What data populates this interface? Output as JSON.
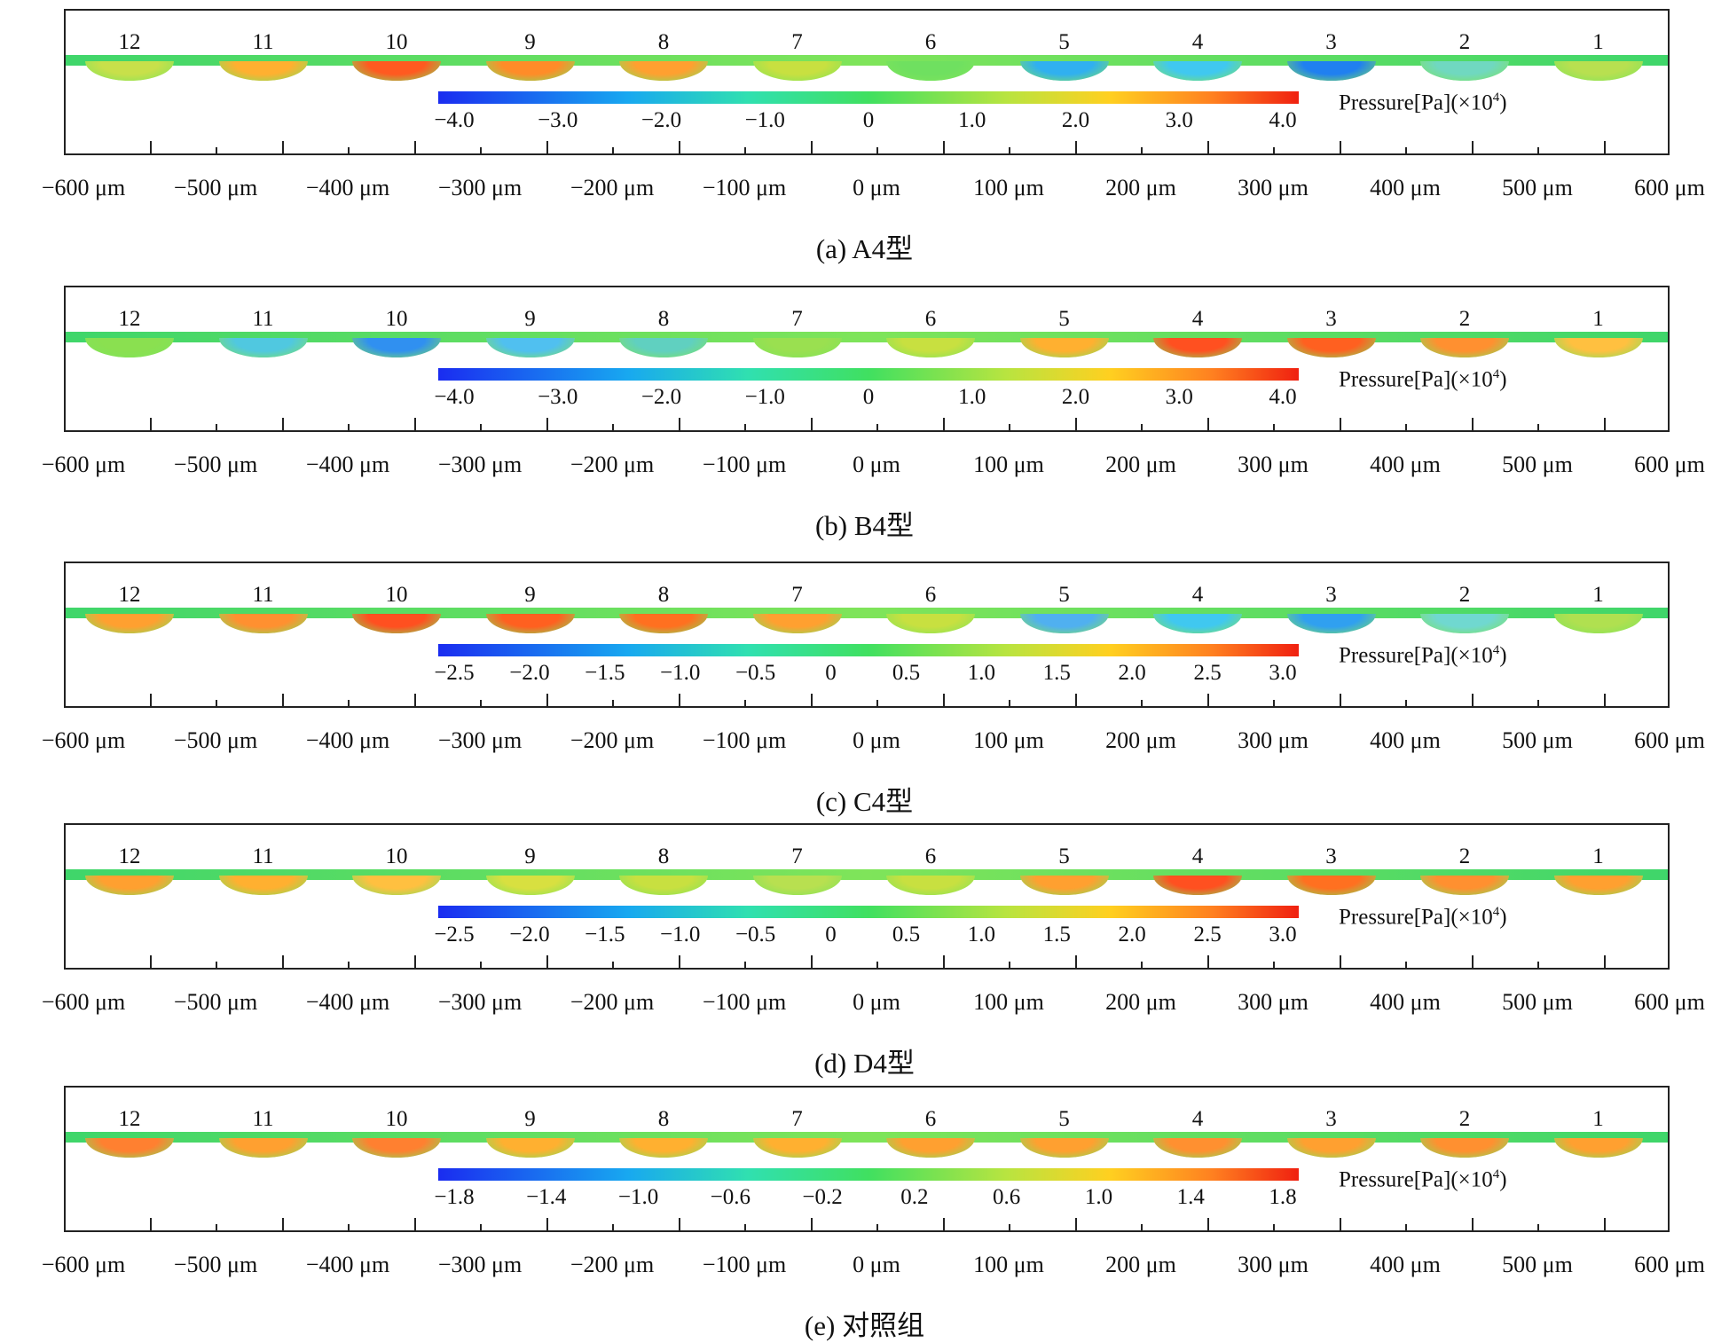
{
  "x_axis_labels": [
    "−600 μm",
    "−500 μm",
    "−400 μm",
    "−300 μm",
    "−200 μm",
    "−100 μm",
    "0 μm",
    "100 μm",
    "200 μm",
    "300 μm",
    "400 μm",
    "500 μm",
    "600 μm"
  ],
  "cavity_numbers": [
    "12",
    "11",
    "10",
    "9",
    "8",
    "7",
    "6",
    "5",
    "4",
    "3",
    "2",
    "1"
  ],
  "pressure_label_text": "Pressure[Pa](×10",
  "pressure_label_exp": "4",
  "pressure_label_close": ")",
  "panels": [
    {
      "caption": "(a)  A4型",
      "colorbar_ticks": [
        "−4.0",
        "−3.0",
        "−2.0",
        "−1.0",
        "0",
        "1.0",
        "2.0",
        "3.0",
        "4.0"
      ],
      "dimple_colors": [
        "#c8e04a",
        "#ffb030",
        "#ff5a20",
        "#ff8c28",
        "#ffa030",
        "#c8e040",
        "#6fe060",
        "#30b0f0",
        "#40c8f0",
        "#2080f0",
        "#70d8c0",
        "#b8e050"
      ]
    },
    {
      "caption": "(b)  B4型",
      "colorbar_ticks": [
        "−4.0",
        "−3.0",
        "−2.0",
        "−1.0",
        "0",
        "1.0",
        "2.0",
        "3.0",
        "4.0"
      ],
      "dimple_colors": [
        "#8ae050",
        "#50c8e0",
        "#3090f0",
        "#50c0f0",
        "#60d0c0",
        "#9ae050",
        "#c8e040",
        "#ffb030",
        "#ff5020",
        "#ff6020",
        "#ff9030",
        "#ffc040"
      ]
    },
    {
      "caption": "(c)  C4型",
      "colorbar_ticks": [
        "−2.5",
        "−2.0",
        "−1.5",
        "−1.0",
        "−0.5",
        "0",
        "0.5",
        "1.0",
        "1.5",
        "2.0",
        "2.5",
        "3.0"
      ],
      "dimple_colors": [
        "#ffa030",
        "#ff9030",
        "#ff5020",
        "#ff6020",
        "#ff7020",
        "#ffa030",
        "#c8e040",
        "#50b0f0",
        "#40c8f0",
        "#30a0f0",
        "#70d8d0",
        "#b0e050"
      ]
    },
    {
      "caption": "(d)  D4型",
      "colorbar_ticks": [
        "−2.5",
        "−2.0",
        "−1.5",
        "−1.0",
        "−0.5",
        "0",
        "0.5",
        "1.0",
        "1.5",
        "2.0",
        "2.5",
        "3.0"
      ],
      "dimple_colors": [
        "#ffa030",
        "#ffb030",
        "#ffc040",
        "#d8e040",
        "#c8e040",
        "#b8e050",
        "#c8e040",
        "#ffa030",
        "#ff5020",
        "#ff7020",
        "#ff9030",
        "#ffa030"
      ]
    },
    {
      "caption": "(e)  对照组",
      "colorbar_ticks": [
        "−1.8",
        "−1.4",
        "−1.0",
        "−0.6",
        "−0.2",
        "0.2",
        "0.6",
        "1.0",
        "1.4",
        "1.8"
      ],
      "dimple_colors": [
        "#ff8030",
        "#ffa030",
        "#ff8030",
        "#ffb030",
        "#ffb030",
        "#ffb030",
        "#ffa030",
        "#ffa030",
        "#ff9030",
        "#ffa030",
        "#ff9030",
        "#ffa030"
      ]
    }
  ]
}
